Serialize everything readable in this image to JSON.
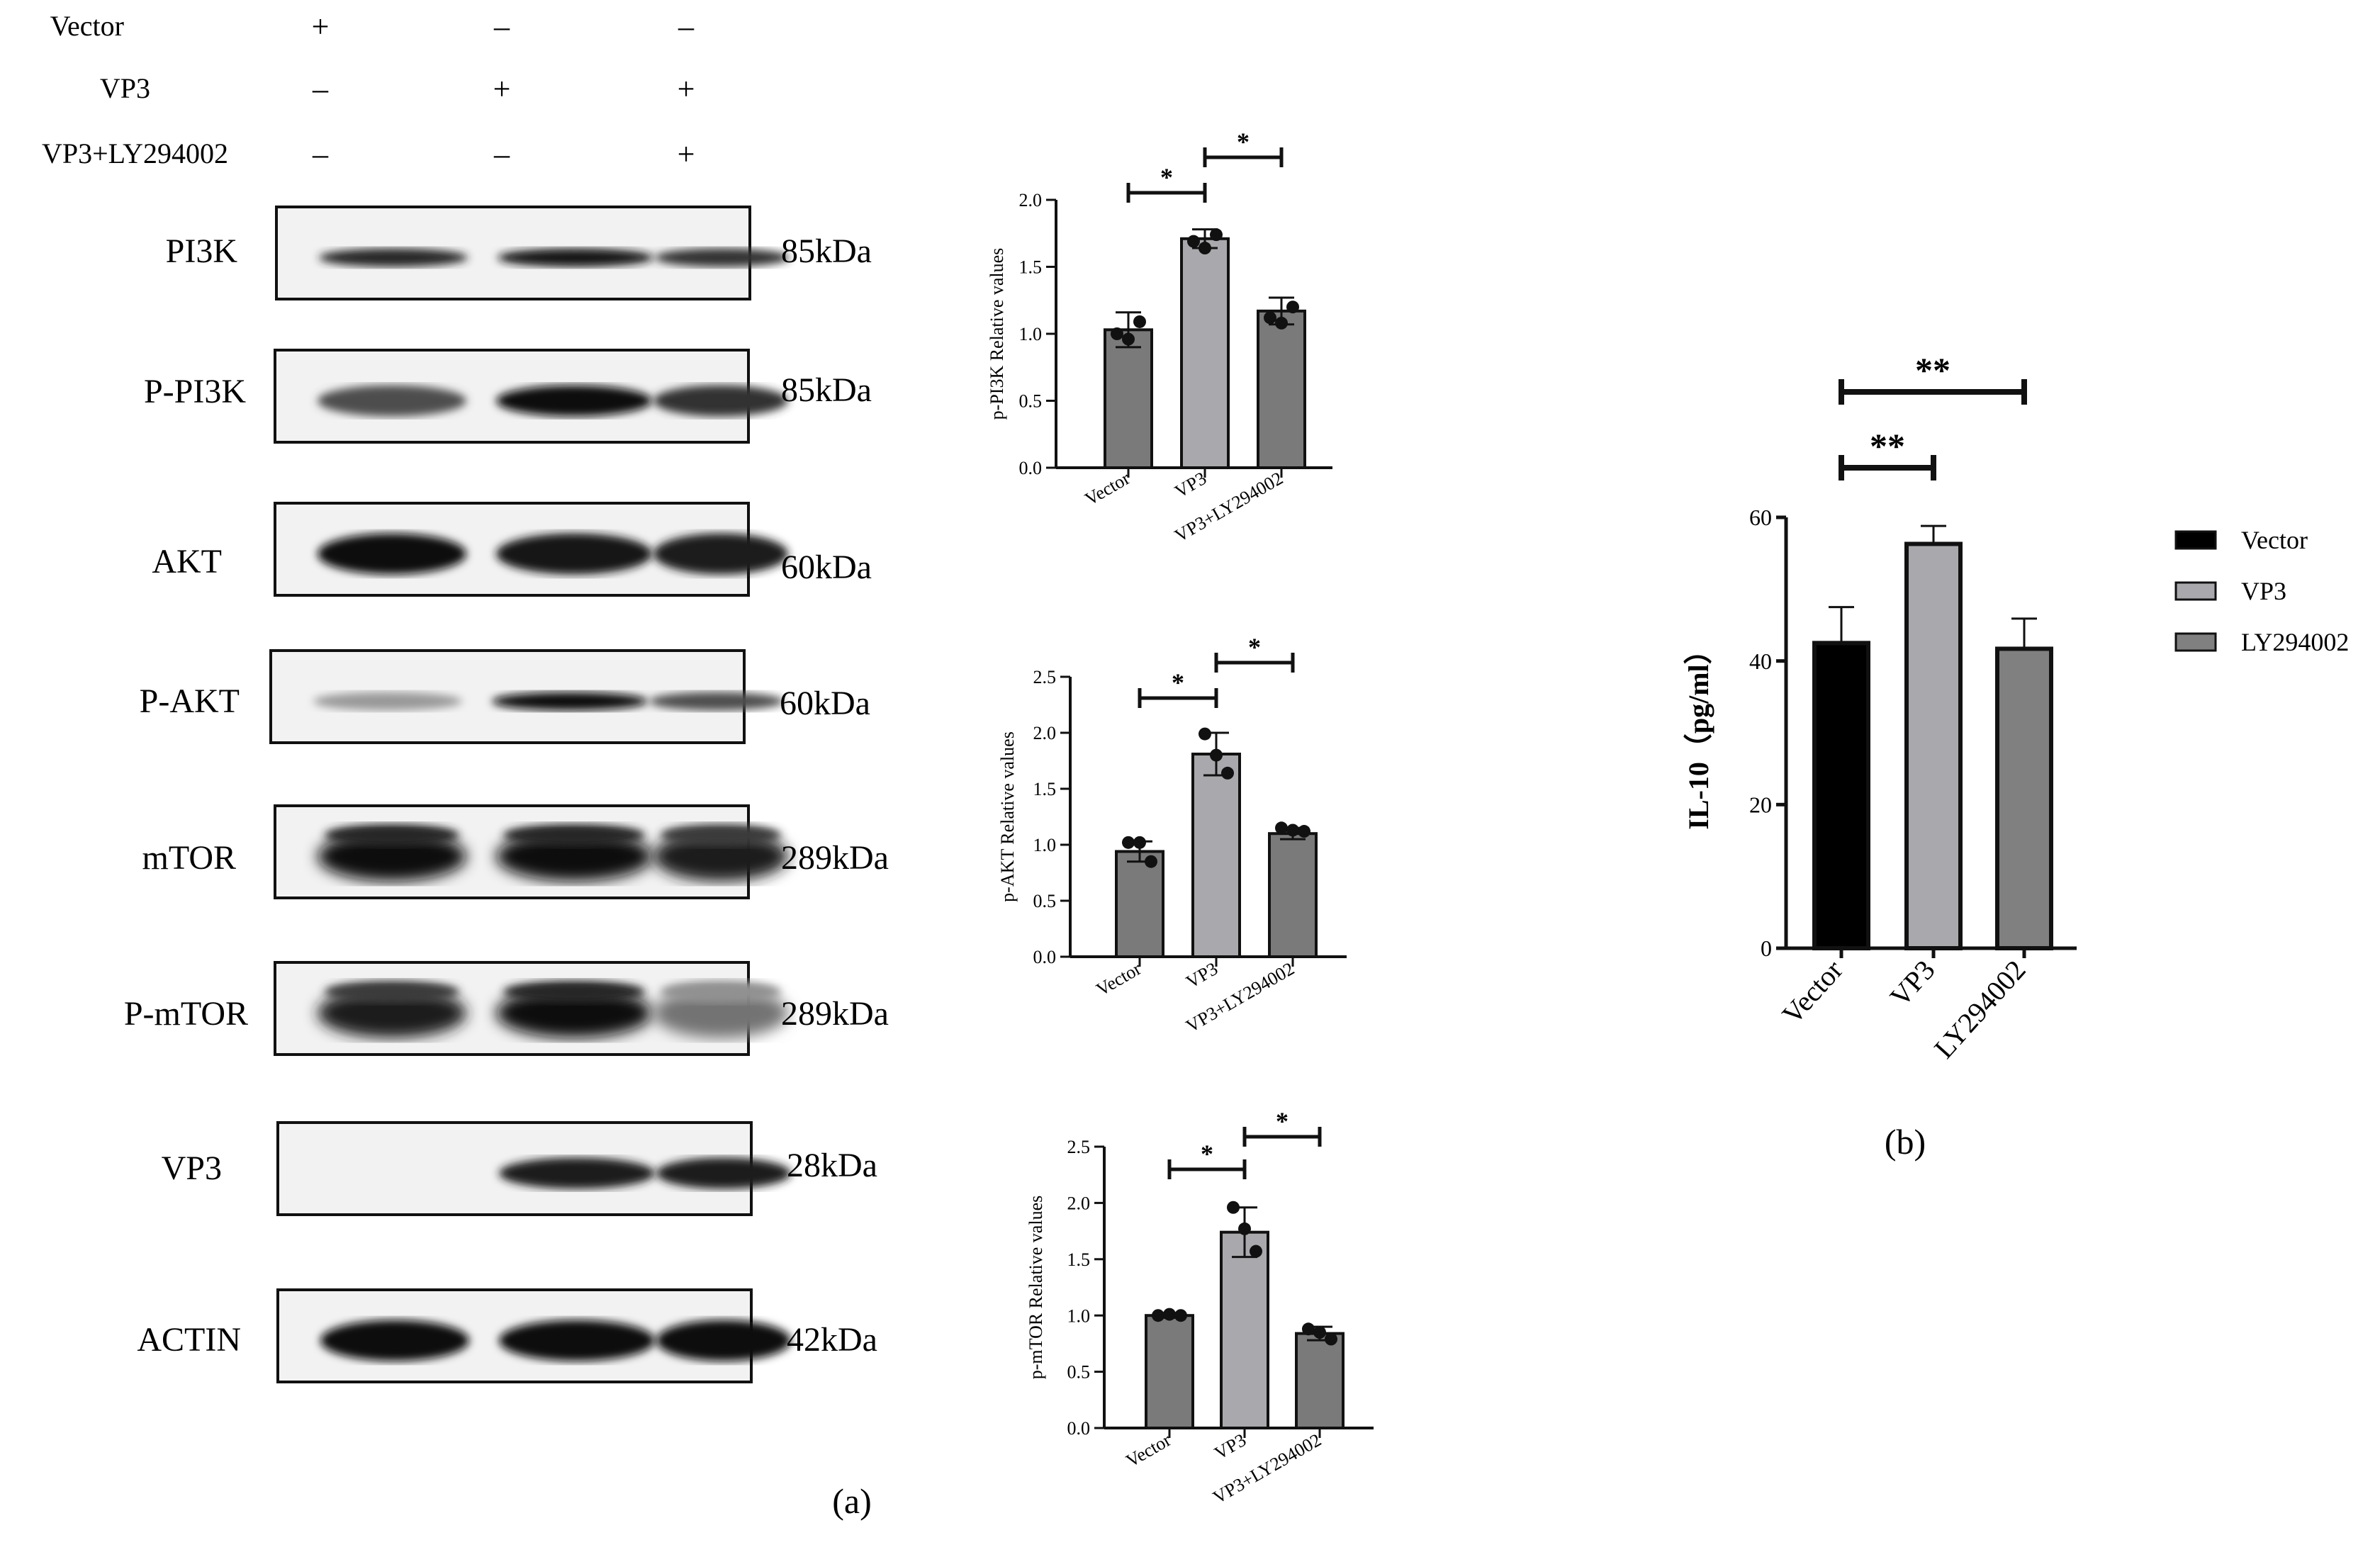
{
  "treatment_rows": [
    {
      "label": "Vector",
      "signs": [
        "+",
        "–",
        "–"
      ]
    },
    {
      "label": "VP3",
      "signs": [
        "–",
        "+",
        "+"
      ]
    },
    {
      "label": "VP3+LY294002",
      "signs": [
        "–",
        "–",
        "+"
      ]
    }
  ],
  "blots": [
    {
      "label": "PI3K",
      "kda": "85kDa",
      "style": "thin",
      "bands": [
        0.85,
        0.95,
        0.8
      ]
    },
    {
      "label": "P-PI3K",
      "kda": "85kDa",
      "style": "medium",
      "bands": [
        0.65,
        1.0,
        0.8
      ]
    },
    {
      "label": "AKT",
      "kda": "60kDa",
      "style": "thick",
      "bands": [
        1.0,
        0.95,
        0.9
      ]
    },
    {
      "label": "P-AKT",
      "kda": "60kDa",
      "style": "thin",
      "bands": [
        0.25,
        1.0,
        0.65
      ]
    },
    {
      "label": "mTOR",
      "kda": "289kDa",
      "style": "smear",
      "bands": [
        1.0,
        1.0,
        0.9
      ]
    },
    {
      "label": "P-mTOR",
      "kda": "289kDa",
      "style": "smear",
      "bands": [
        0.9,
        1.0,
        0.45
      ]
    },
    {
      "label": "VP3",
      "kda": "28kDa",
      "style": "medium",
      "bands": [
        0.0,
        0.9,
        0.9
      ]
    },
    {
      "label": "ACTIN",
      "kda": "42kDa",
      "style": "thick",
      "bands": [
        1.0,
        1.0,
        1.0
      ]
    }
  ],
  "panel_labels": {
    "a": "(a)",
    "b": "(b)"
  },
  "chart_data": [
    {
      "type": "bar",
      "categories": [
        "Vector",
        "VP3",
        "VP3+LY294002"
      ],
      "values": [
        1.03,
        1.71,
        1.17
      ],
      "errors": [
        0.13,
        0.07,
        0.1
      ],
      "points": [
        [
          1.0,
          1.09,
          0.96
        ],
        [
          1.69,
          1.74,
          1.64
        ],
        [
          1.12,
          1.2,
          1.08
        ]
      ],
      "bar_colors": [
        "#7a7a7a",
        "#a9a9ad",
        "#7a7a7a"
      ],
      "ylabel": "p-PI3K Relative values",
      "ylim": [
        0,
        2.0
      ],
      "yticks": [
        "0.0",
        "0.5",
        "1.0",
        "1.5",
        "2.0"
      ],
      "ytick_values": [
        0,
        0.5,
        1.0,
        1.5,
        2.0
      ],
      "significance": [
        {
          "from": 0,
          "to": 1,
          "label": "*",
          "level": 0
        },
        {
          "from": 1,
          "to": 2,
          "label": "*",
          "level": 1
        }
      ]
    },
    {
      "type": "bar",
      "categories": [
        "Vector",
        "VP3",
        "VP3+LY294002"
      ],
      "values": [
        0.94,
        1.81,
        1.1
      ],
      "errors": [
        0.09,
        0.19,
        0.05
      ],
      "points": [
        [
          1.02,
          0.85,
          1.02
        ],
        [
          1.99,
          1.64,
          1.8
        ],
        [
          1.15,
          1.12,
          1.13
        ]
      ],
      "bar_colors": [
        "#7a7a7a",
        "#a9a9ad",
        "#7a7a7a"
      ],
      "ylabel": "p-AKT Relative values",
      "ylim": [
        0,
        2.5
      ],
      "yticks": [
        "0.0",
        "0.5",
        "1.0",
        "1.5",
        "2.0",
        "2.5"
      ],
      "ytick_values": [
        0,
        0.5,
        1.0,
        1.5,
        2.0,
        2.5
      ],
      "significance": [
        {
          "from": 0,
          "to": 1,
          "label": "*",
          "level": 0
        },
        {
          "from": 1,
          "to": 2,
          "label": "*",
          "level": 1
        }
      ]
    },
    {
      "type": "bar",
      "categories": [
        "Vector",
        "VP3",
        "VP3+LY294002"
      ],
      "values": [
        1.0,
        1.74,
        0.84
      ],
      "errors": [
        0.02,
        0.22,
        0.06
      ],
      "points": [
        [
          1.0,
          1.0,
          1.01
        ],
        [
          1.96,
          1.57,
          1.77
        ],
        [
          0.88,
          0.79,
          0.85
        ]
      ],
      "bar_colors": [
        "#7a7a7a",
        "#a9a9ad",
        "#7a7a7a"
      ],
      "ylabel": "p-mTOR Relative values",
      "ylim": [
        0,
        2.5
      ],
      "yticks": [
        "0.0",
        "0.5",
        "1.0",
        "1.5",
        "2.0",
        "2.5"
      ],
      "ytick_values": [
        0,
        0.5,
        1.0,
        1.5,
        2.0,
        2.5
      ],
      "significance": [
        {
          "from": 0,
          "to": 1,
          "label": "*",
          "level": 0
        },
        {
          "from": 1,
          "to": 2,
          "label": "*",
          "level": 1
        }
      ]
    },
    {
      "type": "bar",
      "categories": [
        "Vector",
        "VP3",
        "LY294002"
      ],
      "values": [
        42.5,
        56.3,
        41.7
      ],
      "errors": [
        5.0,
        2.5,
        4.2
      ],
      "bar_colors": [
        "#000000",
        "#a9a9ad",
        "#808080"
      ],
      "ylabel": "IL-10（pg/ml）",
      "ylim": [
        0,
        60
      ],
      "yticks": [
        "0",
        "20",
        "40",
        "60"
      ],
      "ytick_values": [
        0,
        20,
        40,
        60
      ],
      "legend": [
        {
          "name": "Vector",
          "color": "#000000"
        },
        {
          "name": "VP3",
          "color": "#a9a9ad"
        },
        {
          "name": "LY294002",
          "color": "#808080"
        }
      ],
      "legend_position": "right",
      "significance": [
        {
          "from": 0,
          "to": 1,
          "label": "**",
          "level": 0
        },
        {
          "from": 0,
          "to": 2,
          "label": "**",
          "level": 1
        }
      ]
    }
  ]
}
